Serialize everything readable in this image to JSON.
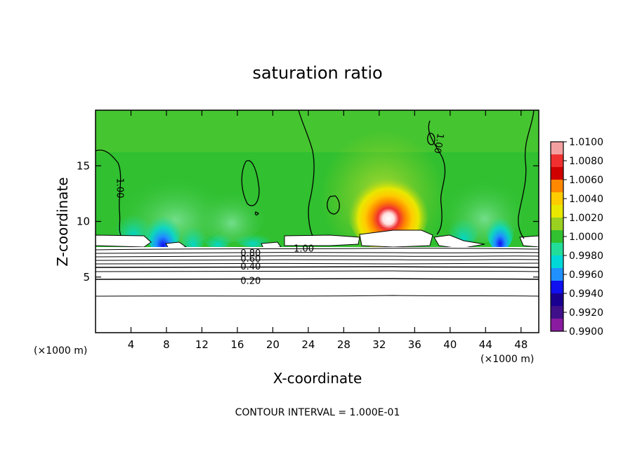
{
  "chart_data": {
    "type": "heatmap",
    "title": "saturation ratio",
    "xlabel": "X-coordinate",
    "ylabel": "Z-coordinate",
    "x_unit_left": "(×1000 m)",
    "x_unit_right": "(×1000 m)",
    "xlim": [
      0,
      50
    ],
    "ylim": [
      0,
      20
    ],
    "x_ticks": [
      4,
      8,
      12,
      16,
      20,
      24,
      28,
      32,
      36,
      40,
      44,
      48
    ],
    "y_ticks": [
      5,
      10,
      15
    ],
    "footer": "CONTOUR INTERVAL = 1.000E-01",
    "colorbar": {
      "levels": [
        "1.0100",
        "1.0080",
        "1.0060",
        "1.0040",
        "1.0020",
        "1.0000",
        "0.9980",
        "0.9960",
        "0.9940",
        "0.9920",
        "0.9900"
      ],
      "colors": [
        "#f5a0a0",
        "#f03030",
        "#d00000",
        "#ff8800",
        "#ffcc00",
        "#e8e800",
        "#9ad020",
        "#30c030",
        "#22dd99",
        "#00d8d8",
        "#2090ff",
        "#1010f0",
        "#1a0090",
        "#40108a",
        "#8a1aa0"
      ]
    },
    "contour_labels": [
      {
        "text": "1.00",
        "x": 2.8,
        "y": 13.0,
        "rotate": 90
      },
      {
        "text": "1.00",
        "x": 23.5,
        "y": 7.6,
        "rotate": 0
      },
      {
        "text": "1.00",
        "x": 38.8,
        "y": 17.0,
        "rotate": 100
      },
      {
        "text": "0.80",
        "x": 17.5,
        "y": 7.2,
        "rotate": 0
      },
      {
        "text": "0.60",
        "x": 17.5,
        "y": 6.7,
        "rotate": 0
      },
      {
        "text": "0.40",
        "x": 17.5,
        "y": 6.0,
        "rotate": 0
      },
      {
        "text": "0.20",
        "x": 17.5,
        "y": 4.7,
        "rotate": 0
      }
    ]
  }
}
